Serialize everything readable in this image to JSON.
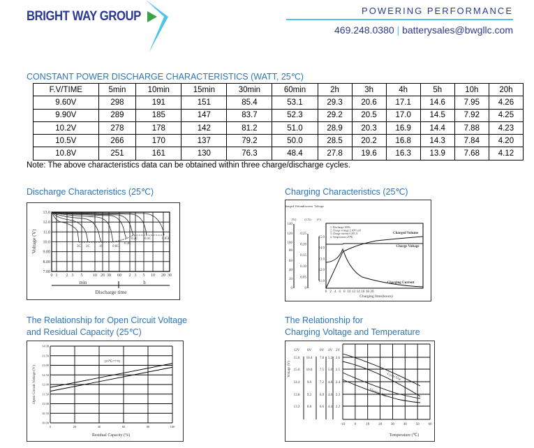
{
  "header": {
    "logo_text": "BRIGHT WAY GROUP",
    "tagline": "POWERING PERFORMANCE",
    "phone": "469.248.0380",
    "separator": "|",
    "email": "batterysales@bwgllc.com",
    "colors": {
      "brand_navy": "#2b3990",
      "accent_cyan": "#4fc3ea",
      "arrow_green": "#3aa346",
      "title_blue": "#2e75b6"
    }
  },
  "table": {
    "title": "CONSTANT POWER DISCHARGE CHARACTERISTICS (WATT, 25℃)",
    "columns": [
      "F.V/TIME",
      "5min",
      "10min",
      "15min",
      "30min",
      "60min",
      "2h",
      "3h",
      "4h",
      "5h",
      "10h",
      "20h"
    ],
    "rows": [
      [
        "9.60V",
        "298",
        "191",
        "151",
        "85.4",
        "53.1",
        "29.3",
        "20.6",
        "17.1",
        "14.6",
        "7.95",
        "4.26"
      ],
      [
        "9.90V",
        "289",
        "185",
        "147",
        "83.7",
        "52.3",
        "29.2",
        "20.5",
        "17.0",
        "14.5",
        "7.92",
        "4.25"
      ],
      [
        "10.2V",
        "278",
        "178",
        "142",
        "81.2",
        "51.0",
        "28.9",
        "20.3",
        "16.9",
        "14.4",
        "7.88",
        "4.23"
      ],
      [
        "10.5V",
        "266",
        "170",
        "137",
        "79.2",
        "50.0",
        "28.5",
        "20.2",
        "16.8",
        "14.3",
        "7.84",
        "4.20"
      ],
      [
        "10.8V",
        "251",
        "161",
        "130",
        "76.3",
        "48.4",
        "27.8",
        "19.6",
        "16.3",
        "13.9",
        "7.68",
        "4.12"
      ]
    ],
    "note": "Note: The above characteristics data can be obtained within three charge/discharge cycles."
  },
  "charts": {
    "discharge": {
      "title": "Discharge Characteristics (25℃)",
      "ylabel": "Voltage (V)",
      "xlabel": "Discharge time",
      "min_label": "min",
      "h_label": "h",
      "yticks": [
        "13.0",
        "12.0",
        "11.0",
        "10.0",
        "9.00",
        "8.00",
        "7.00"
      ],
      "xticks": [
        "0",
        "1",
        "2",
        "3",
        "5",
        "10",
        "20",
        "30",
        "60",
        "2",
        "3",
        "5",
        "10",
        "20",
        "30"
      ],
      "rates": [
        "3C",
        "2C",
        "1C",
        "0.6C",
        "0.3C",
        "0.2C",
        "0.1C",
        "0.05C"
      ]
    },
    "charging": {
      "title": "Charging Characteristics (25℃)",
      "axis_titles": [
        "Charged Volume",
        "Current",
        "Voltage"
      ],
      "axis_units": [
        "(%)",
        "(CA)",
        "(V)"
      ],
      "pct_ticks": [
        "140",
        "120",
        "100",
        "80",
        "60",
        "40",
        "20",
        "0"
      ],
      "ca_ticks": [
        "0.25",
        "0.20",
        "0.15",
        "0.10",
        "0.05",
        "0"
      ],
      "v_ticks": [
        "15.0",
        "14.0",
        "13.0",
        "12.0",
        "11.0"
      ],
      "xticks": [
        "0",
        "2",
        "4",
        "6",
        "8",
        "10",
        "12",
        "14",
        "16",
        "18",
        "20"
      ],
      "xlabel": "Charging time(hours)",
      "notes": [
        "1. Discharge:100%",
        "2. Charge voltage:2.40V/cell",
        "3. Charge current:0.20CA",
        "4. Temperature:25℃"
      ],
      "series_labels": [
        "Charged Volume",
        "Charge Voltage",
        "Charging Current"
      ]
    },
    "ocv": {
      "title_line1": "The Relationship for Open Circuit Voltage",
      "title_line2": "and Residual Capacity (25℃)",
      "ylabel": "Open Circuit Voltage (V)",
      "xlabel": "Residual Capacity (%)",
      "yticks": [
        "14.00",
        "13.50",
        "13.00",
        "12.50",
        "12.00",
        "11.50",
        "11.00",
        "10.50",
        "10.00"
      ],
      "xticks": [
        "0",
        "20",
        "40",
        "60",
        "80",
        "100"
      ],
      "annotation": "(25℃/77°F)"
    },
    "temp": {
      "title_line1": "The Relationship for",
      "title_line2": "Charging Voltage and Temperature",
      "ylabel": "Voltage (V)",
      "xlabel": "Temperature (℃)",
      "col_headers": [
        "12V",
        "8V",
        "6V",
        "4V",
        "2V"
      ],
      "cols": [
        [
          "15.6",
          "15.0",
          "14.4",
          "13.8",
          "13.2"
        ],
        [
          "10.4",
          "10.0",
          "9.6",
          "9.2",
          "8.8"
        ],
        [
          "7.8",
          "7.5",
          "7.2",
          "6.9",
          "6.6"
        ],
        [
          "5.2",
          "5.0",
          "4.8",
          "4.6",
          "4.4"
        ],
        [
          "2.6",
          "2.5",
          "2.4",
          "2.3",
          "2.2"
        ]
      ],
      "xticks": [
        "-10",
        "0",
        "10",
        "20",
        "30",
        "40",
        "50",
        "60"
      ],
      "series_labels": [
        "Cycle Use",
        "Floating Use"
      ]
    }
  }
}
